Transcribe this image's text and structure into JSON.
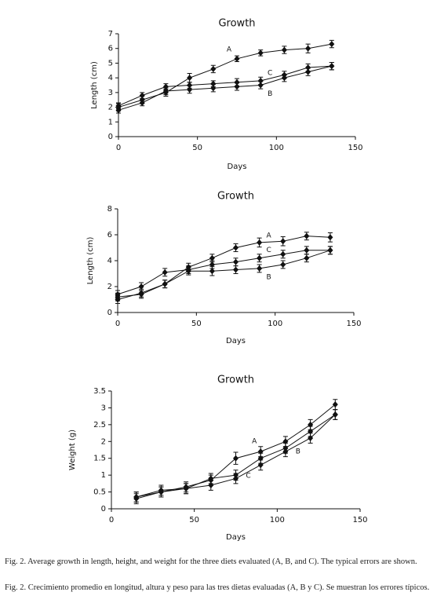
{
  "chart_data": [
    {
      "type": "line",
      "title": "Growth",
      "x_label": "Days",
      "y_label": "Length (cm)",
      "xlim": [
        0,
        150
      ],
      "xticks": [
        0,
        50,
        100,
        150
      ],
      "ylim": [
        0,
        7
      ],
      "yticks": [
        0,
        1,
        2,
        3,
        4,
        5,
        6,
        7
      ],
      "x": [
        0,
        15,
        30,
        45,
        60,
        75,
        90,
        105,
        120,
        135
      ],
      "series": [
        {
          "name": "A",
          "color": "#111111",
          "values": [
            2.0,
            2.5,
            3.0,
            4.0,
            4.6,
            5.3,
            5.7,
            5.9,
            6.0,
            6.3
          ],
          "errors": [
            0.25,
            0.25,
            0.25,
            0.3,
            0.25,
            0.2,
            0.2,
            0.25,
            0.3,
            0.25
          ]
        },
        {
          "name": "B",
          "color": "#111111",
          "values": [
            1.8,
            2.3,
            3.1,
            3.2,
            3.3,
            3.4,
            3.5,
            4.0,
            4.4,
            4.8
          ],
          "errors": [
            0.2,
            0.2,
            0.25,
            0.25,
            0.25,
            0.25,
            0.25,
            0.25,
            0.25,
            0.25
          ]
        },
        {
          "name": "C",
          "color": "#111111",
          "values": [
            2.1,
            2.8,
            3.4,
            3.5,
            3.6,
            3.7,
            3.8,
            4.2,
            4.7,
            4.8
          ],
          "errors": [
            0.2,
            0.2,
            0.2,
            0.2,
            0.2,
            0.25,
            0.25,
            0.25,
            0.25,
            0.25
          ]
        }
      ]
    },
    {
      "type": "line",
      "title": "Growth",
      "x_label": "Days",
      "y_label": "Length (cm)",
      "xlim": [
        0,
        150
      ],
      "xticks": [
        0,
        50,
        100,
        150
      ],
      "ylim": [
        0,
        8
      ],
      "yticks": [
        0,
        2,
        4,
        6,
        8
      ],
      "x": [
        0,
        15,
        30,
        45,
        60,
        75,
        90,
        105,
        120,
        135
      ],
      "series": [
        {
          "name": "A",
          "color": "#111111",
          "values": [
            1.0,
            1.5,
            2.2,
            3.5,
            4.2,
            5.0,
            5.4,
            5.5,
            5.9,
            5.8
          ],
          "errors": [
            0.3,
            0.3,
            0.3,
            0.3,
            0.3,
            0.3,
            0.35,
            0.35,
            0.3,
            0.35
          ]
        },
        {
          "name": "B",
          "color": "#111111",
          "values": [
            1.2,
            1.4,
            2.2,
            3.2,
            3.2,
            3.3,
            3.4,
            3.7,
            4.2,
            4.8
          ],
          "errors": [
            0.3,
            0.3,
            0.3,
            0.3,
            0.35,
            0.3,
            0.3,
            0.3,
            0.3,
            0.3
          ]
        },
        {
          "name": "C",
          "color": "#111111",
          "values": [
            1.4,
            2.0,
            3.1,
            3.3,
            3.7,
            3.9,
            4.2,
            4.5,
            4.8,
            4.8
          ],
          "errors": [
            0.3,
            0.3,
            0.3,
            0.3,
            0.3,
            0.3,
            0.3,
            0.3,
            0.3,
            0.3
          ]
        }
      ]
    },
    {
      "type": "line",
      "title": "Growth",
      "x_label": "Days",
      "y_label": "Weight (g)",
      "xlim": [
        0,
        150
      ],
      "xticks": [
        0,
        50,
        100,
        150
      ],
      "ylim": [
        0,
        3.5
      ],
      "yticks": [
        0,
        0.5,
        1,
        1.5,
        2,
        2.5,
        3,
        3.5
      ],
      "x": [
        15,
        30,
        45,
        60,
        75,
        90,
        105,
        120,
        135
      ],
      "series": [
        {
          "name": "A",
          "color": "#111111",
          "values": [
            0.35,
            0.5,
            0.65,
            0.85,
            1.5,
            1.7,
            2.0,
            2.5,
            3.1
          ],
          "errors": [
            0.15,
            0.15,
            0.15,
            0.15,
            0.18,
            0.15,
            0.15,
            0.15,
            0.15
          ]
        },
        {
          "name": "B",
          "color": "#111111",
          "values": [
            0.3,
            0.5,
            0.6,
            0.7,
            0.9,
            1.3,
            1.7,
            2.1,
            2.8
          ],
          "errors": [
            0.15,
            0.15,
            0.15,
            0.15,
            0.15,
            0.15,
            0.15,
            0.15,
            0.15
          ]
        },
        {
          "name": "C",
          "color": "#111111",
          "values": [
            0.35,
            0.55,
            0.6,
            0.9,
            1.0,
            1.5,
            1.8,
            2.3,
            2.8
          ],
          "errors": [
            0.15,
            0.15,
            0.15,
            0.15,
            0.15,
            0.15,
            0.15,
            0.15,
            0.15
          ]
        }
      ]
    }
  ],
  "captions": [
    "Fig. 2. Average growth in length, height, and weight for the three diets evaluated (A, B, and C). The typical errors are shown.",
    "Fig. 2. Crecimiento promedio en longitud, altura y peso para las tres dietas evaluadas (A, B y C). Se muestran los errores típicos."
  ]
}
